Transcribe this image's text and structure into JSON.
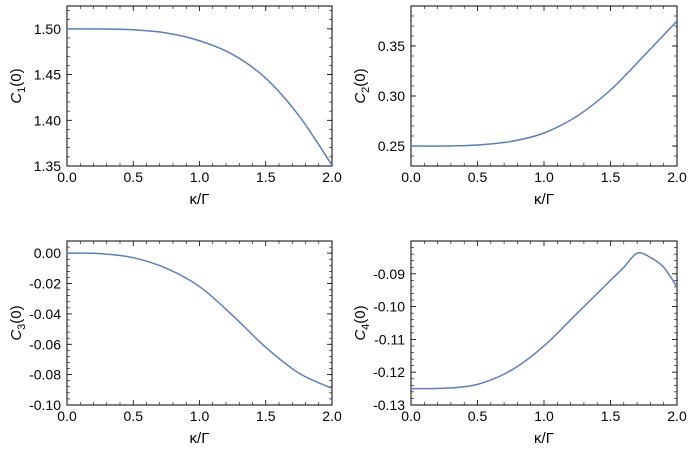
{
  "chart_data": [
    {
      "type": "line",
      "ylabel_main": "C",
      "ylabel_sub": "1",
      "ylabel_tail": "(0)",
      "xlabel": "κ/Γ",
      "xlim": [
        0,
        2
      ],
      "ylim": [
        1.35,
        1.525
      ],
      "xticks": [
        "0.0",
        "0.5",
        "1.0",
        "1.5",
        "2.0"
      ],
      "yticks": [
        "1.35",
        "1.40",
        "1.45",
        "1.50"
      ],
      "ytick_values": [
        1.35,
        1.4,
        1.45,
        1.5
      ],
      "line_color": "#5b7fb8",
      "series": [
        {
          "x": [
            0,
            0.25,
            0.5,
            0.75,
            1.0,
            1.25,
            1.5,
            1.75,
            2.0
          ],
          "values": [
            1.5,
            1.4999,
            1.499,
            1.4955,
            1.487,
            1.472,
            1.446,
            1.405,
            1.351
          ]
        }
      ]
    },
    {
      "type": "line",
      "ylabel_main": "C",
      "ylabel_sub": "2",
      "ylabel_tail": "(0)",
      "xlabel": "κ/Γ",
      "xlim": [
        0,
        2
      ],
      "ylim": [
        0.23,
        0.39
      ],
      "xticks": [
        "0.0",
        "0.5",
        "1.0",
        "1.5",
        "2.0"
      ],
      "yticks": [
        "0.25",
        "0.30",
        "0.35"
      ],
      "ytick_values": [
        0.25,
        0.3,
        0.35
      ],
      "line_color": "#5b7fb8",
      "series": [
        {
          "x": [
            0,
            0.25,
            0.5,
            0.75,
            1.0,
            1.25,
            1.5,
            1.75,
            2.0
          ],
          "values": [
            0.25,
            0.25,
            0.251,
            0.2545,
            0.263,
            0.28,
            0.306,
            0.34,
            0.375
          ]
        }
      ]
    },
    {
      "type": "line",
      "ylabel_main": "C",
      "ylabel_sub": "3",
      "ylabel_tail": "(0)",
      "xlabel": "κ/Γ",
      "xlim": [
        0,
        2
      ],
      "ylim": [
        -0.1,
        0.008
      ],
      "xticks": [
        "0.0",
        "0.5",
        "1.0",
        "1.5",
        "2.0"
      ],
      "yticks": [
        "-0.10",
        "-0.08",
        "-0.06",
        "-0.04",
        "-0.02",
        "0.00"
      ],
      "ytick_values": [
        -0.1,
        -0.08,
        -0.06,
        -0.04,
        -0.02,
        0.0
      ],
      "line_color": "#5b7fb8",
      "series": [
        {
          "x": [
            0,
            0.25,
            0.5,
            0.75,
            1.0,
            1.25,
            1.5,
            1.75,
            2.0
          ],
          "values": [
            0.0,
            -0.0003,
            -0.003,
            -0.01,
            -0.022,
            -0.041,
            -0.062,
            -0.079,
            -0.089
          ]
        }
      ]
    },
    {
      "type": "line",
      "ylabel_main": "C",
      "ylabel_sub": "4",
      "ylabel_tail": "(0)",
      "xlabel": "κ/Γ",
      "xlim": [
        0,
        2
      ],
      "ylim": [
        -0.13,
        -0.08
      ],
      "xticks": [
        "0.0",
        "0.5",
        "1.0",
        "1.5",
        "2.0"
      ],
      "yticks": [
        "-0.13",
        "-0.12",
        "-0.11",
        "-0.10",
        "-0.09"
      ],
      "ytick_values": [
        -0.13,
        -0.12,
        -0.11,
        -0.1,
        -0.09
      ],
      "line_color": "#5b7fb8",
      "series": [
        {
          "x": [
            0,
            0.25,
            0.5,
            0.75,
            1.0,
            1.25,
            1.5,
            1.6,
            1.7,
            1.8,
            1.9,
            2.0
          ],
          "values": [
            -0.125,
            -0.1249,
            -0.1237,
            -0.1195,
            -0.112,
            -0.102,
            -0.092,
            -0.088,
            -0.0837,
            -0.085,
            -0.088,
            -0.094
          ]
        }
      ]
    }
  ]
}
